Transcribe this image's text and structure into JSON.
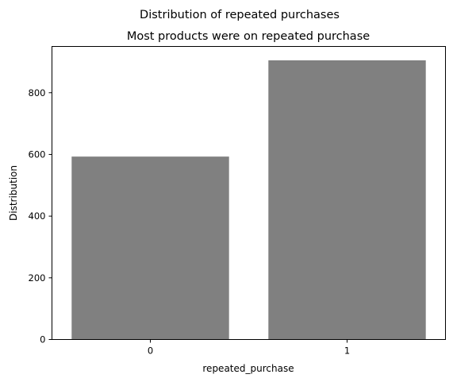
{
  "chart_data": {
    "type": "bar",
    "suptitle": "Distribution of repeated purchases",
    "title": "Most products were on repeated purchase",
    "xlabel": "repeated_purchase",
    "ylabel": "Distribution",
    "categories": [
      "0",
      "1"
    ],
    "values": [
      593,
      905
    ],
    "ylim": [
      0,
      950
    ],
    "yticks": [
      0,
      200,
      400,
      600,
      800
    ],
    "grid": false,
    "bar_color": "#808080"
  }
}
